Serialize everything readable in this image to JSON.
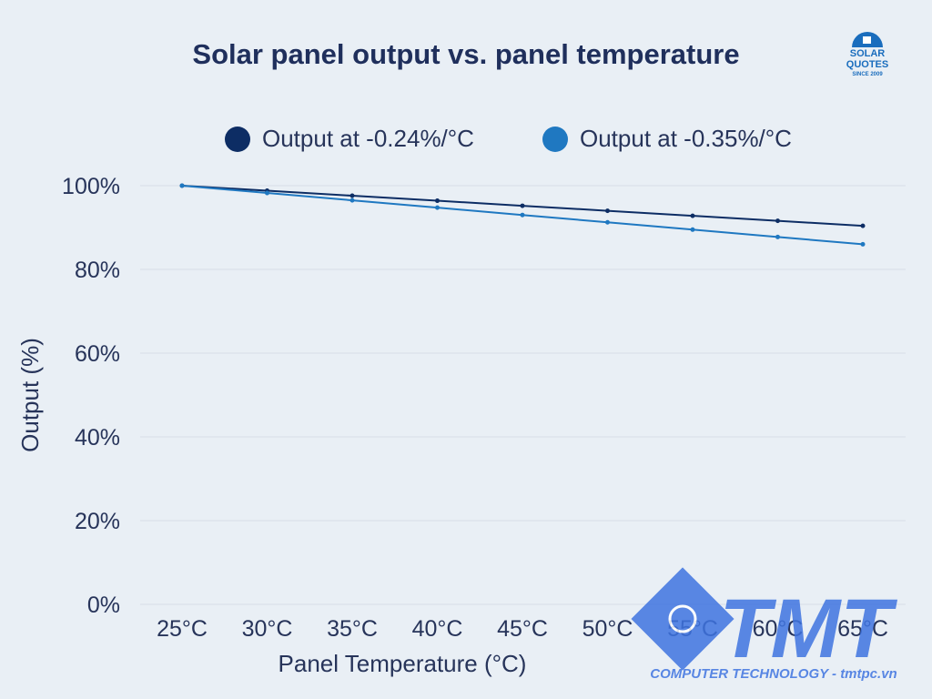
{
  "chart_data": {
    "type": "line",
    "title": "Solar panel output vs. panel temperature",
    "xlabel": "Panel Temperature (°C)",
    "ylabel": "Output (%)",
    "categories": [
      "25°C",
      "30°C",
      "35°C",
      "40°C",
      "45°C",
      "50°C",
      "55°C",
      "60°C",
      "65°C"
    ],
    "ylim": [
      0,
      100
    ],
    "yticks": [
      "0%",
      "20%",
      "40%",
      "60%",
      "80%",
      "100%"
    ],
    "legend_position": "top",
    "grid": true,
    "series": [
      {
        "name": "Output at -0.24%/°C",
        "color": "#0d2d64",
        "values": [
          100,
          98.8,
          97.6,
          96.4,
          95.2,
          94.0,
          92.8,
          91.6,
          90.4
        ]
      },
      {
        "name": "Output at -0.35%/°C",
        "color": "#1f78c1",
        "values": [
          100,
          98.25,
          96.5,
          94.75,
          93.0,
          91.25,
          89.5,
          87.75,
          86.0
        ]
      }
    ]
  },
  "logo": {
    "line1": "SOLAR",
    "line2": "QUOTES",
    "line3": "SINCE 2009"
  },
  "watermark": {
    "brand": "TMT",
    "tagline": "COMPUTER TECHNOLOGY - tmtpc.vn"
  }
}
